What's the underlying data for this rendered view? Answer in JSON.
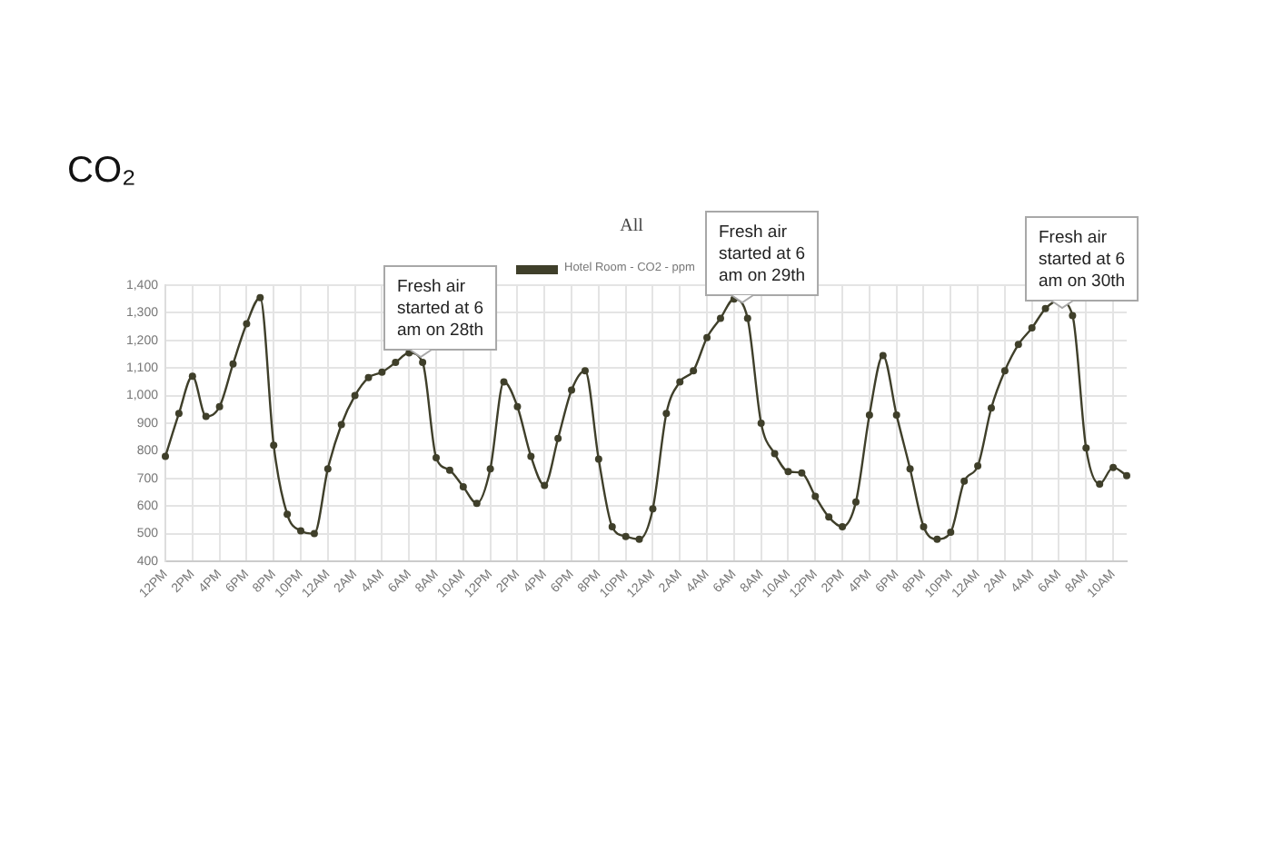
{
  "chart_data": {
    "type": "line",
    "title": "CO₂",
    "subtitle": "All",
    "categories": [
      "12PM",
      null,
      "2PM",
      null,
      "4PM",
      null,
      "6PM",
      null,
      "8PM",
      null,
      "10PM",
      null,
      "12AM",
      null,
      "2AM",
      null,
      "4AM",
      null,
      "6AM",
      null,
      "8AM",
      null,
      "10AM",
      null,
      "12PM",
      null,
      "2PM",
      null,
      "4PM",
      null,
      "6PM",
      null,
      "8PM",
      null,
      "10PM",
      null,
      "12AM",
      null,
      "2AM",
      null,
      "4AM",
      null,
      "6AM",
      null,
      "8AM",
      null,
      "10AM",
      null,
      "12PM",
      null,
      "2PM",
      null,
      "4PM",
      null,
      "6PM",
      null,
      "8PM",
      null,
      "10PM",
      null,
      "12AM",
      null,
      "2AM",
      null,
      "4AM",
      null,
      "6AM",
      null,
      "8AM",
      null,
      "10AM",
      null
    ],
    "series": [
      {
        "name": "Hotel Room - CO2 - ppm",
        "color": "#3f3f2a",
        "values": [
          780,
          935,
          1070,
          925,
          960,
          1115,
          1260,
          1355,
          820,
          570,
          510,
          500,
          735,
          895,
          1000,
          1065,
          1085,
          1120,
          1155,
          1120,
          775,
          730,
          670,
          610,
          735,
          1050,
          960,
          780,
          675,
          845,
          1020,
          1090,
          770,
          525,
          490,
          480,
          590,
          935,
          1050,
          1090,
          1210,
          1280,
          1350,
          1280,
          900,
          790,
          725,
          720,
          635,
          560,
          525,
          615,
          930,
          1145,
          930,
          735,
          525,
          480,
          505,
          690,
          745,
          955,
          1090,
          1185,
          1245,
          1315,
          1345,
          1290,
          810,
          680,
          740,
          710
        ]
      }
    ],
    "ylim": [
      400,
      1400
    ],
    "yticks": [
      400,
      500,
      600,
      700,
      800,
      900,
      {
        "value": 1000,
        "label": "1,000"
      },
      {
        "value": 1100,
        "label": "1,100"
      },
      {
        "value": 1200,
        "label": "1,200"
      },
      {
        "value": 1300,
        "label": "1,300"
      },
      {
        "value": 1400,
        "label": "1,400"
      }
    ],
    "grid": true,
    "legend": "top",
    "marker": "circle",
    "annotations": [
      "Fresh air started at 6 am on 28th",
      "Fresh air started at 6 am on 29th",
      "Fresh air started at 6 am on 30th"
    ]
  }
}
